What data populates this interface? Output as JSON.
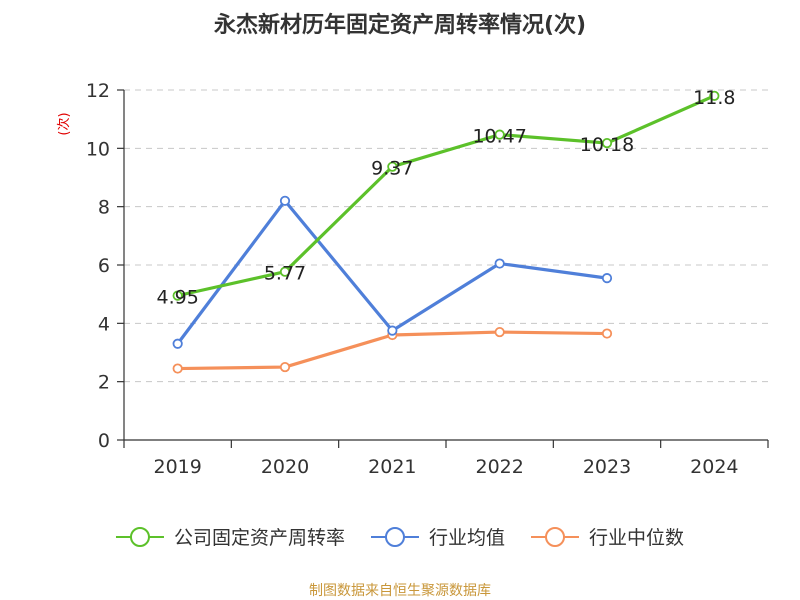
{
  "chart_data": {
    "type": "line",
    "title": "永杰新材历年固定资产周转率情况(次)",
    "ylabel": "(次)",
    "xlabel": "",
    "categories": [
      "2019",
      "2020",
      "2021",
      "2022",
      "2023",
      "2024"
    ],
    "ylim": [
      0,
      12
    ],
    "yticks": [
      0,
      2,
      4,
      6,
      8,
      10,
      12
    ],
    "grid": true,
    "legend_position": "bottom",
    "series": [
      {
        "name": "公司固定资产周转率",
        "color": "#5cc12a",
        "values": [
          4.95,
          5.77,
          9.37,
          10.47,
          10.18,
          11.8
        ],
        "labels": [
          "4.95",
          "5.77",
          "9.37",
          "10.47",
          "10.18",
          "11.8"
        ]
      },
      {
        "name": "行业均值",
        "color": "#4f7fd9",
        "values": [
          3.3,
          8.2,
          3.75,
          6.05,
          5.55,
          null
        ]
      },
      {
        "name": "行业中位数",
        "color": "#f5905a",
        "values": [
          2.45,
          2.5,
          3.6,
          3.7,
          3.65,
          null
        ]
      }
    ],
    "source": "制图数据来自恒生聚源数据库"
  }
}
